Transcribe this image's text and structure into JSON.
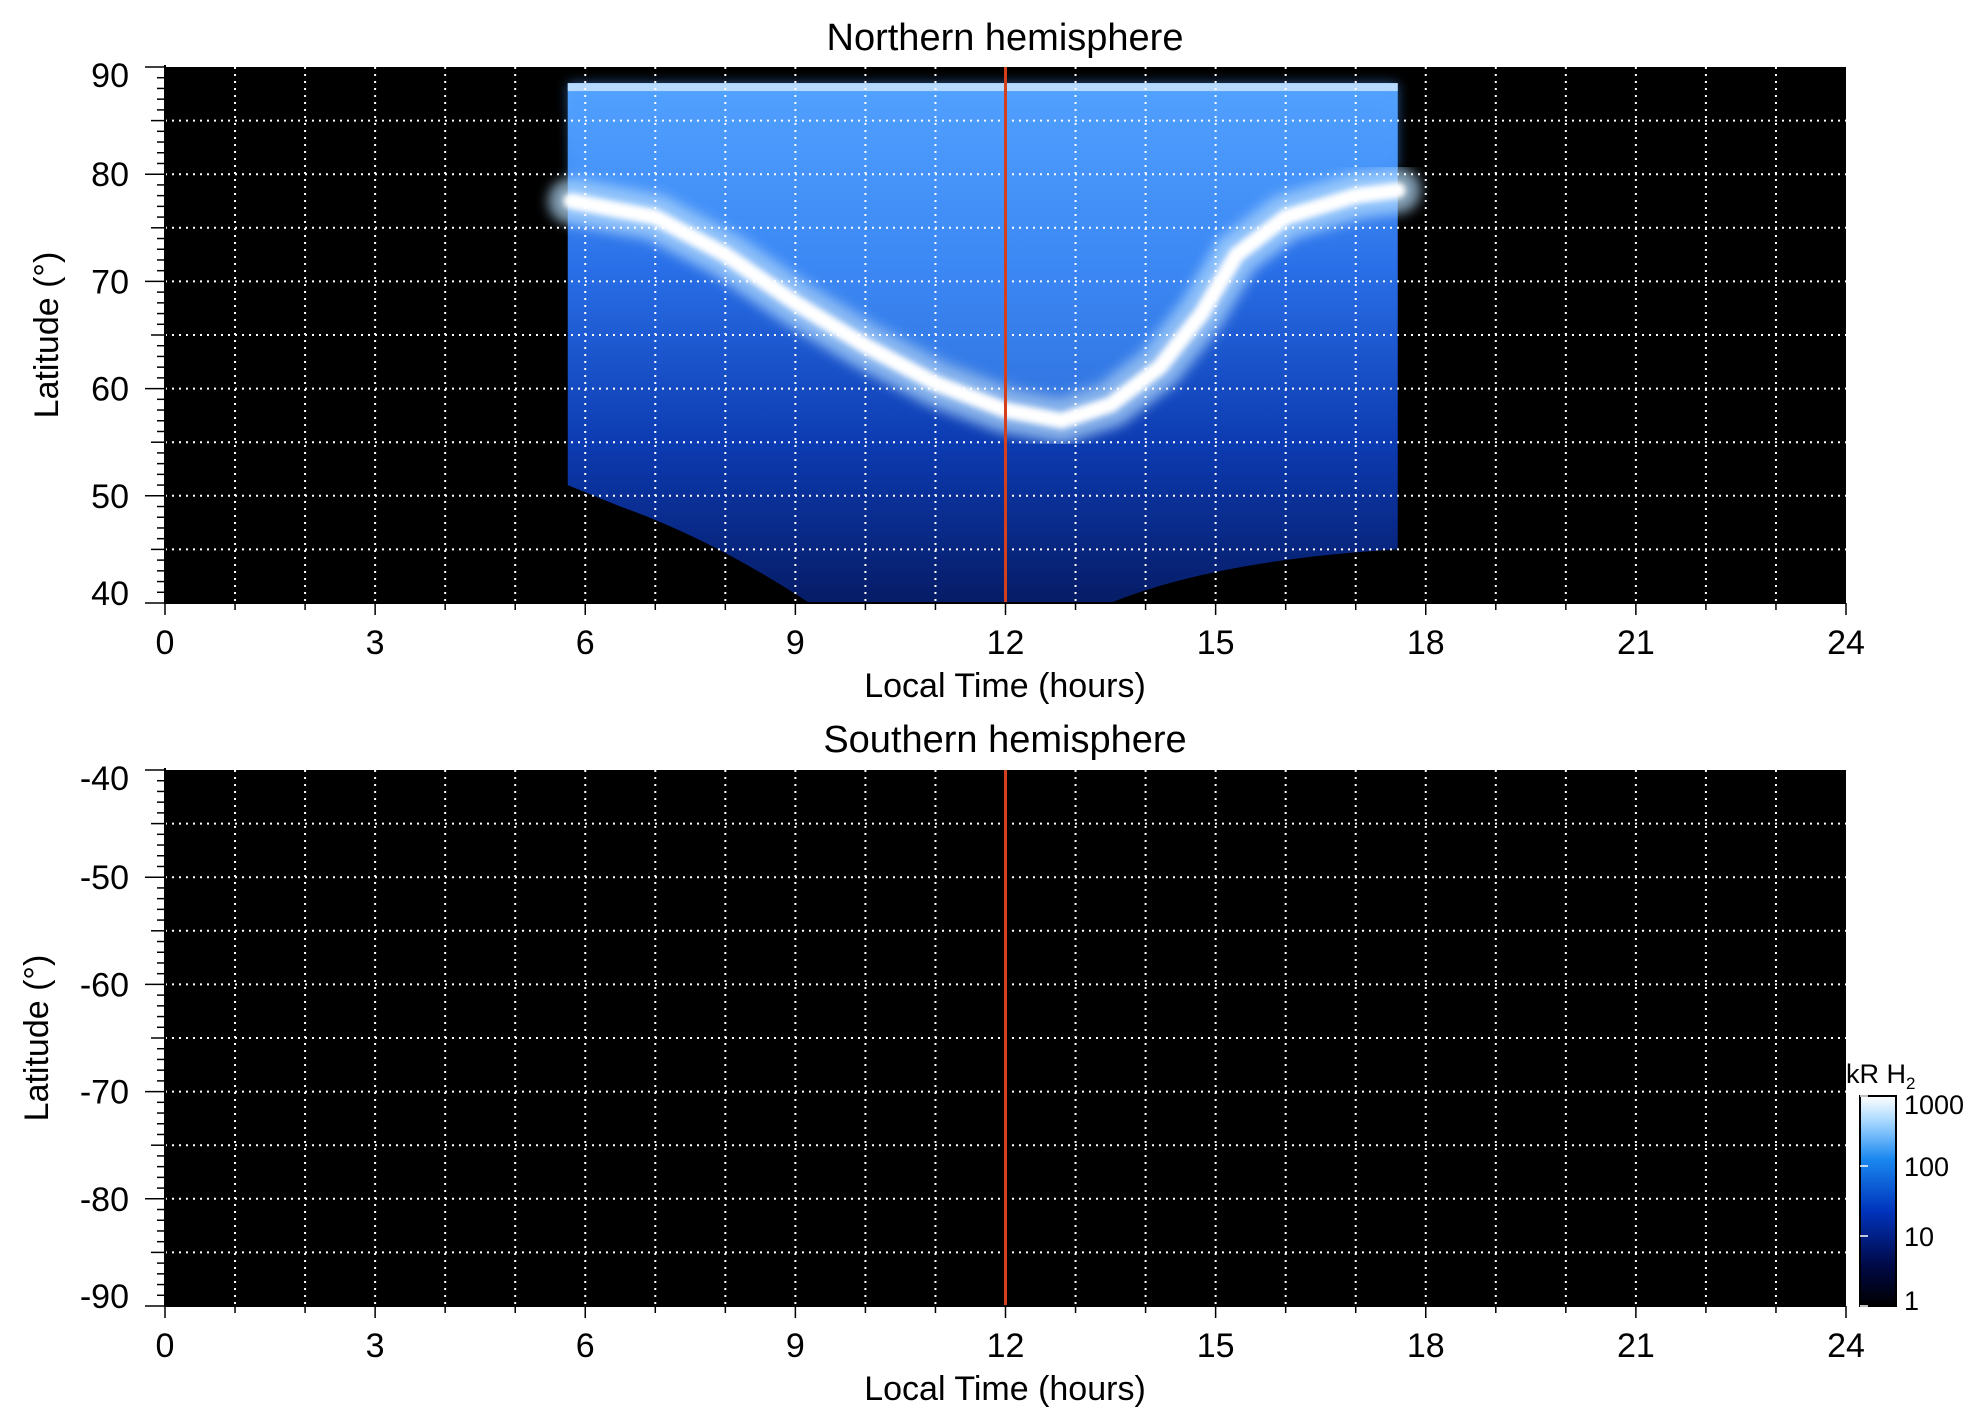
{
  "chart_data": [
    {
      "type": "heatmap",
      "title": "Northern hemisphere",
      "xlabel": "Local Time (hours)",
      "ylabel": "Latitude (°)",
      "xlim": [
        0,
        24
      ],
      "ylim": [
        40,
        90
      ],
      "xticks": [
        "0",
        "3",
        "6",
        "9",
        "12",
        "15",
        "18",
        "21",
        "24"
      ],
      "yticks": [
        "40",
        "50",
        "60",
        "70",
        "80",
        "90"
      ],
      "grid": true,
      "background": "#000000",
      "marker_line": {
        "x": 12,
        "color": "#d4401e"
      },
      "coverage": {
        "lt_start": 5.75,
        "lt_end": 17.6,
        "lat_top": 88.5
      },
      "oval": {
        "lt": [
          5.8,
          7,
          8,
          9,
          10,
          11,
          12,
          12.8,
          13.5,
          14.2,
          14.8,
          15.3,
          16,
          17,
          17.6
        ],
        "lat": [
          77.5,
          76,
          72.5,
          68,
          64,
          60.5,
          58,
          57,
          58.5,
          62,
          67,
          72.5,
          76,
          78,
          78.5
        ]
      }
    },
    {
      "type": "heatmap",
      "title": "Southern hemisphere",
      "xlabel": "Local Time (hours)",
      "ylabel": "Latitude (°)",
      "xlim": [
        0,
        24
      ],
      "ylim": [
        -90,
        -40
      ],
      "xticks": [
        "0",
        "3",
        "6",
        "9",
        "12",
        "15",
        "18",
        "21",
        "24"
      ],
      "yticks": [
        "-40",
        "-50",
        "-60",
        "-70",
        "-80",
        "-90"
      ],
      "grid": true,
      "background": "#000000",
      "marker_line": {
        "x": 12,
        "color": "#d4401e"
      }
    }
  ],
  "colorbar": {
    "title": "kR H",
    "title_sub": "2",
    "scale": "log",
    "range": [
      1,
      1000
    ],
    "tick_labels": [
      "1000",
      "100",
      "10",
      "1"
    ],
    "colors": [
      "#000000",
      "#000a4a",
      "#0033bb",
      "#1a88f0",
      "#a8d8ff",
      "#ffffff"
    ]
  }
}
